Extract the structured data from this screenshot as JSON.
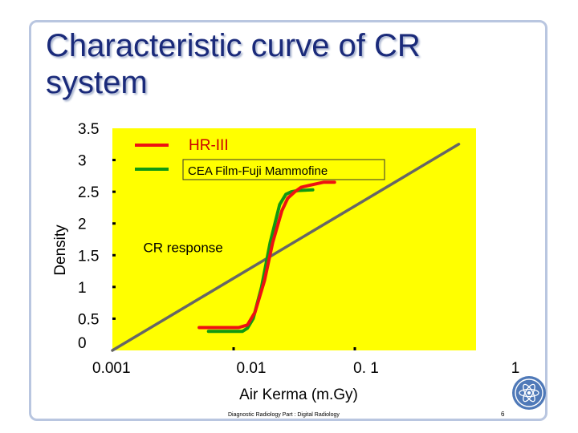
{
  "slide": {
    "title": "Characteristic curve of CR system",
    "footer": "Diagnostic Radiology Part : Digital Radiology",
    "page_number": "6"
  },
  "colors": {
    "plot_bg": "#ffff00",
    "hr3": "#ee1111",
    "cea": "#119911",
    "cr": "#666666"
  },
  "chart_data": {
    "type": "line",
    "title": "",
    "xlabel": "Air Kerma (m.Gy)",
    "ylabel": "Density",
    "x_scale": "log",
    "xlim": [
      0.001,
      1
    ],
    "ylim": [
      0,
      3.5
    ],
    "x_ticks": [
      {
        "value": 0.001,
        "label": "0.001"
      },
      {
        "value": 0.01,
        "label": "0.01"
      },
      {
        "value": 0.1,
        "label": "0. 1"
      },
      {
        "value": 1,
        "label": "1"
      }
    ],
    "y_ticks": [
      {
        "value": 0,
        "label": "0"
      },
      {
        "value": 0.5,
        "label": "0.5"
      },
      {
        "value": 1,
        "label": "1"
      },
      {
        "value": 1.5,
        "label": "1.5"
      },
      {
        "value": 2,
        "label": "2"
      },
      {
        "value": 2.5,
        "label": "2.5"
      },
      {
        "value": 3,
        "label": "3"
      },
      {
        "value": 3.5,
        "label": "3.5"
      }
    ],
    "legend_position": "top-left",
    "series": [
      {
        "name": "HR-III",
        "color": "#ee1111",
        "x": [
          0.0052,
          0.008,
          0.011,
          0.013,
          0.015,
          0.018,
          0.021,
          0.025,
          0.028,
          0.032,
          0.036,
          0.042,
          0.055,
          0.068
        ],
        "y": [
          0.36,
          0.36,
          0.36,
          0.4,
          0.6,
          1.1,
          1.7,
          2.2,
          2.4,
          2.5,
          2.57,
          2.6,
          2.65,
          2.65
        ]
      },
      {
        "name": "CEA Film-Fuji Mammofine",
        "color": "#119911",
        "x": [
          0.0062,
          0.009,
          0.0118,
          0.013,
          0.0145,
          0.017,
          0.02,
          0.024,
          0.027,
          0.03,
          0.034,
          0.045
        ],
        "y": [
          0.3,
          0.3,
          0.3,
          0.35,
          0.5,
          1.0,
          1.7,
          2.3,
          2.46,
          2.5,
          2.52,
          2.53
        ]
      },
      {
        "name": "",
        "color": "#666666",
        "x": [
          0.001,
          0.72
        ],
        "y": [
          0,
          3.25
        ]
      }
    ],
    "annotations": [
      {
        "text": "CR response",
        "x": 0.0018,
        "y": 1.55
      }
    ]
  }
}
